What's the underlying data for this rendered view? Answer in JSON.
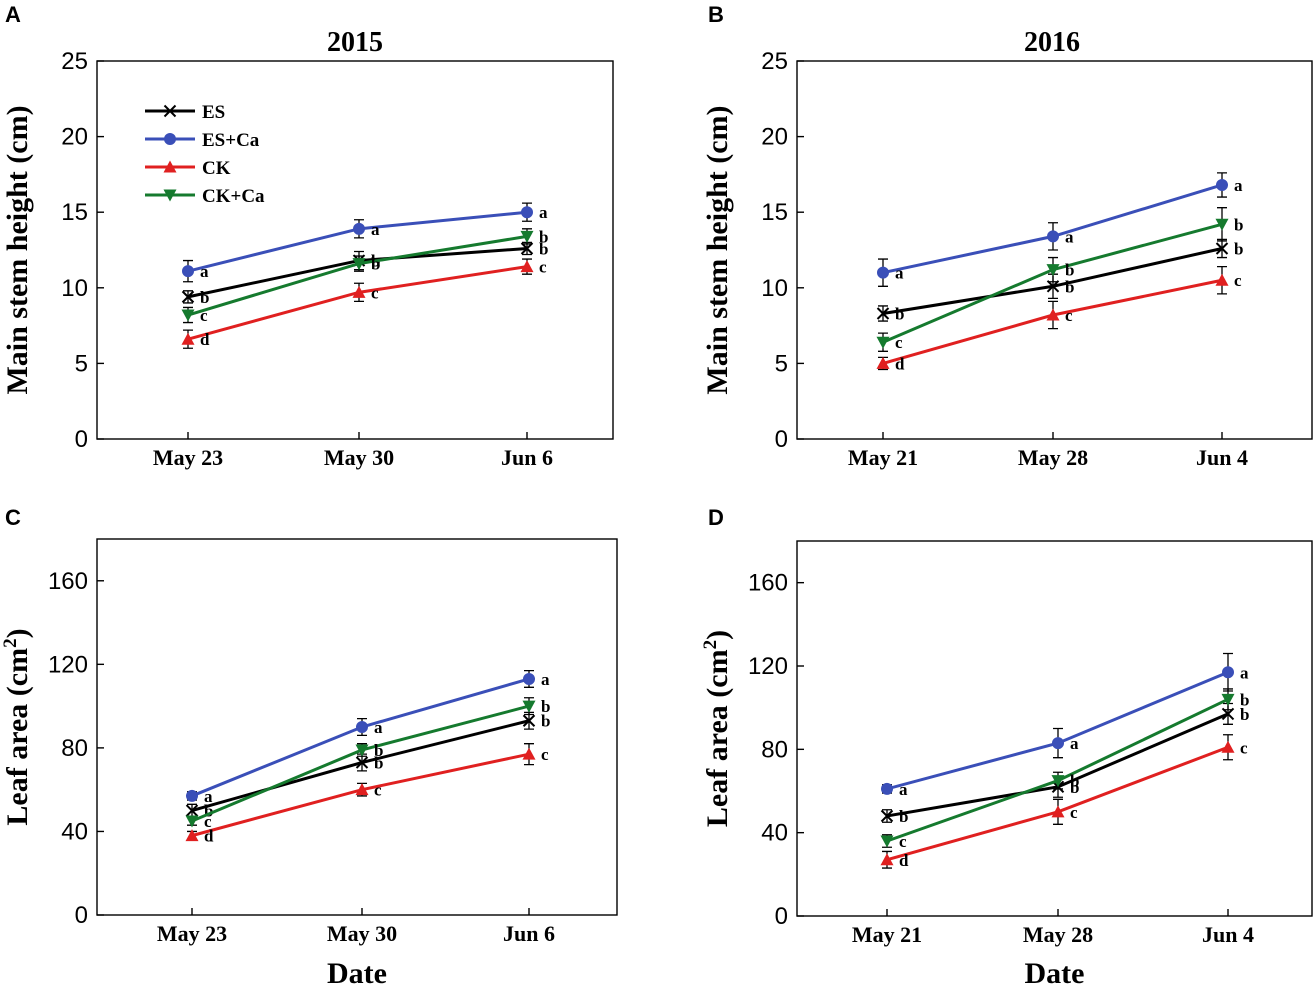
{
  "legend": [
    {
      "key": "ES",
      "label": "ES",
      "color": "#000000",
      "marker": "x-marker"
    },
    {
      "key": "ESCa",
      "label": "ES+Ca",
      "color": "#3a4fb8",
      "marker": "circle-marker"
    },
    {
      "key": "CK",
      "label": "CK",
      "color": "#e02020",
      "marker": "triangle-up-marker"
    },
    {
      "key": "CKCa",
      "label": "CK+Ca",
      "color": "#157a2e",
      "marker": "triangle-down-marker"
    }
  ],
  "chart_data": [
    {
      "panel": "A",
      "type": "line",
      "title": "2015",
      "xlabel": "",
      "ylabel": "Main stem height (cm)",
      "ylabel_sup": "",
      "ylim": [
        0,
        25
      ],
      "yticks": [
        0,
        5,
        10,
        15,
        20,
        25
      ],
      "categories": [
        "May 23",
        "May 30",
        "Jun 6"
      ],
      "legend_visible": true,
      "series": [
        {
          "name": "ES",
          "values": [
            9.4,
            11.8,
            12.6
          ],
          "errors": [
            0.4,
            0.6,
            0.4
          ],
          "letters": [
            "b",
            "b",
            "b"
          ]
        },
        {
          "name": "ES+Ca",
          "values": [
            11.1,
            13.9,
            15.0
          ],
          "errors": [
            0.7,
            0.6,
            0.6
          ],
          "letters": [
            "a",
            "a",
            "a"
          ]
        },
        {
          "name": "CK",
          "values": [
            6.6,
            9.7,
            11.4
          ],
          "errors": [
            0.6,
            0.6,
            0.5
          ],
          "letters": [
            "d",
            "c",
            "c"
          ]
        },
        {
          "name": "CK+Ca",
          "values": [
            8.2,
            11.6,
            13.4
          ],
          "errors": [
            0.5,
            0.5,
            0.5
          ],
          "letters": [
            "c",
            "b",
            "b"
          ]
        }
      ]
    },
    {
      "panel": "B",
      "type": "line",
      "title": "2016",
      "xlabel": "",
      "ylabel": "Main stem height (cm)",
      "ylabel_sup": "",
      "ylim": [
        0,
        25
      ],
      "yticks": [
        0,
        5,
        10,
        15,
        20,
        25
      ],
      "categories": [
        "May 21",
        "May 28",
        "Jun 4"
      ],
      "legend_visible": false,
      "series": [
        {
          "name": "ES",
          "values": [
            8.3,
            10.1,
            12.6
          ],
          "errors": [
            0.5,
            0.8,
            0.6
          ],
          "letters": [
            "b",
            "b",
            "b"
          ]
        },
        {
          "name": "ES+Ca",
          "values": [
            11.0,
            13.4,
            16.8
          ],
          "errors": [
            0.9,
            0.9,
            0.8
          ],
          "letters": [
            "a",
            "a",
            "a"
          ]
        },
        {
          "name": "CK",
          "values": [
            5.0,
            8.2,
            10.5
          ],
          "errors": [
            0.4,
            0.9,
            0.9
          ],
          "letters": [
            "d",
            "c",
            "c"
          ]
        },
        {
          "name": "CK+Ca",
          "values": [
            6.4,
            11.2,
            14.2
          ],
          "errors": [
            0.6,
            0.8,
            1.1
          ],
          "letters": [
            "c",
            "b",
            "b"
          ]
        }
      ]
    },
    {
      "panel": "C",
      "type": "line",
      "title": "",
      "xlabel": "Date",
      "ylabel": "Leaf area (cm",
      "ylabel_sup": "2",
      "ylabel_suffix": ")",
      "ylim": [
        0,
        180
      ],
      "yticks": [
        0,
        40,
        80,
        120,
        160
      ],
      "categories": [
        "May 23",
        "May 30",
        "Jun 6"
      ],
      "legend_visible": false,
      "series": [
        {
          "name": "ES",
          "values": [
            50,
            73,
            93
          ],
          "errors": [
            3,
            4,
            4
          ],
          "letters": [
            "b",
            "b",
            "b"
          ]
        },
        {
          "name": "ES+Ca",
          "values": [
            57,
            90,
            113
          ],
          "errors": [
            2,
            4,
            4
          ],
          "letters": [
            "a",
            "a",
            "a"
          ]
        },
        {
          "name": "CK",
          "values": [
            38,
            60,
            77
          ],
          "errors": [
            2,
            3,
            5
          ],
          "letters": [
            "d",
            "c",
            "c"
          ]
        },
        {
          "name": "CK+Ca",
          "values": [
            45,
            79,
            100
          ],
          "errors": [
            2,
            3,
            4
          ],
          "letters": [
            "c",
            "b",
            "b"
          ]
        }
      ]
    },
    {
      "panel": "D",
      "type": "line",
      "title": "",
      "xlabel": "Date",
      "ylabel": "Leaf area (cm",
      "ylabel_sup": "2",
      "ylabel_suffix": ")",
      "ylim": [
        0,
        180
      ],
      "yticks": [
        0,
        40,
        80,
        120,
        160
      ],
      "categories": [
        "May 21",
        "May 28",
        "Jun 4"
      ],
      "legend_visible": false,
      "series": [
        {
          "name": "ES",
          "values": [
            48,
            62,
            97
          ],
          "errors": [
            3,
            5,
            5
          ],
          "letters": [
            "b",
            "b",
            "b"
          ]
        },
        {
          "name": "ES+Ca",
          "values": [
            61,
            83,
            117
          ],
          "errors": [
            2,
            7,
            9
          ],
          "letters": [
            "a",
            "a",
            "a"
          ]
        },
        {
          "name": "CK",
          "values": [
            27,
            50,
            81
          ],
          "errors": [
            4,
            6,
            6
          ],
          "letters": [
            "d",
            "c",
            "c"
          ]
        },
        {
          "name": "CK+Ca",
          "values": [
            36,
            65,
            104
          ],
          "errors": [
            3,
            4,
            5
          ],
          "letters": [
            "c",
            "b",
            "b"
          ]
        }
      ]
    }
  ]
}
